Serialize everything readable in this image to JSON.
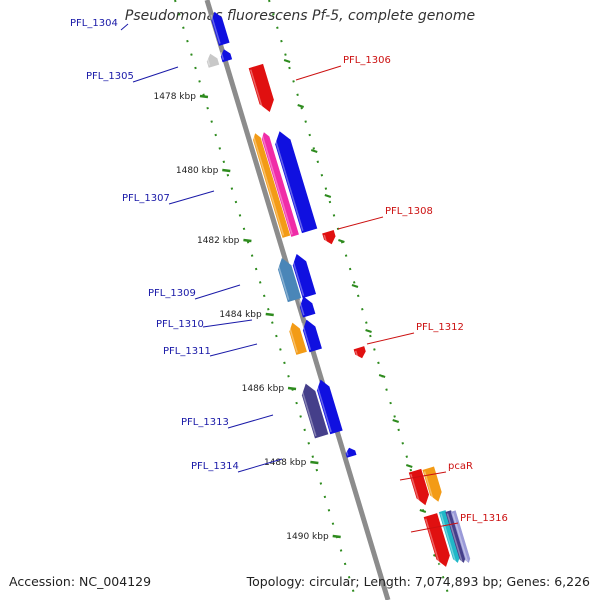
{
  "title": "Pseudomonas fluorescens Pf-5, complete genome",
  "footer": {
    "accession": "Accession: NC_004129",
    "summary": "Topology: circular; Length: 7,074,893 bp; Genes: 6,226"
  },
  "colors": {
    "backbone": "#8c8c8c",
    "tick": "#2e8b1e",
    "label_forward": "#1a1aa8",
    "label_reverse": "#cc1111",
    "scale_text": "#222222"
  },
  "scale_ticks": [
    {
      "label": "1478 kbp"
    },
    {
      "label": "1480 kbp"
    },
    {
      "label": "1482 kbp"
    },
    {
      "label": "1484 kbp"
    },
    {
      "label": "1486 kbp"
    },
    {
      "label": "1488 kbp"
    },
    {
      "label": "1490 kbp"
    }
  ],
  "gene_labels": [
    {
      "text": "PFL_1304",
      "strand": "forward"
    },
    {
      "text": "PFL_1305",
      "strand": "forward"
    },
    {
      "text": "PFL_1306",
      "strand": "reverse"
    },
    {
      "text": "PFL_1307",
      "strand": "forward"
    },
    {
      "text": "PFL_1308",
      "strand": "reverse"
    },
    {
      "text": "PFL_1309",
      "strand": "forward"
    },
    {
      "text": "PFL_1310",
      "strand": "forward"
    },
    {
      "text": "PFL_1311",
      "strand": "forward"
    },
    {
      "text": "PFL_1312",
      "strand": "reverse"
    },
    {
      "text": "PFL_1313",
      "strand": "forward"
    },
    {
      "text": "PFL_1314",
      "strand": "forward"
    },
    {
      "text": "pcaR",
      "strand": "reverse"
    },
    {
      "text": "PFL_1316",
      "strand": "reverse"
    }
  ],
  "features": [
    {
      "name": "PFL_1304",
      "color": "#1010e0",
      "strand": "forward"
    },
    {
      "name": "PFL_1305-gray",
      "color": "#c8c8c8",
      "strand": "forward"
    },
    {
      "name": "PFL_1305",
      "color": "#1010e0",
      "strand": "forward"
    },
    {
      "name": "PFL_1306",
      "color": "#e01010",
      "strand": "reverse"
    },
    {
      "name": "PFL_1307-orange",
      "color": "#f39b16",
      "strand": "forward"
    },
    {
      "name": "PFL_1307-magenta",
      "color": "#f02ca8",
      "strand": "forward"
    },
    {
      "name": "PFL_1307",
      "color": "#1010e0",
      "strand": "forward"
    },
    {
      "name": "PFL_1308",
      "color": "#e01010",
      "strand": "reverse"
    },
    {
      "name": "PFL_1309-steel",
      "color": "#4a86b8",
      "strand": "forward"
    },
    {
      "name": "PFL_1309",
      "color": "#1010e0",
      "strand": "forward"
    },
    {
      "name": "PFL_1310",
      "color": "#1010e0",
      "strand": "forward"
    },
    {
      "name": "PFL_1311-orange",
      "color": "#f39b16",
      "strand": "forward"
    },
    {
      "name": "PFL_1311",
      "color": "#1010e0",
      "strand": "forward"
    },
    {
      "name": "PFL_1312",
      "color": "#e01010",
      "strand": "reverse"
    },
    {
      "name": "PFL_1313-slate",
      "color": "#453f8a",
      "strand": "forward"
    },
    {
      "name": "PFL_1313",
      "color": "#1010e0",
      "strand": "forward"
    },
    {
      "name": "PFL_1314",
      "color": "#1010e0",
      "strand": "forward"
    },
    {
      "name": "pcaR",
      "color": "#e01010",
      "strand": "reverse"
    },
    {
      "name": "pcaR-orange",
      "color": "#f39b16",
      "strand": "reverse"
    },
    {
      "name": "PFL_1316",
      "color": "#e01010",
      "strand": "reverse"
    },
    {
      "name": "PFL_1316-cyan",
      "color": "#20b8c8",
      "strand": "reverse"
    },
    {
      "name": "PFL_1316-slate",
      "color": "#453f8a",
      "strand": "reverse"
    },
    {
      "name": "PFL_1316-lavender",
      "color": "#9a9ad8",
      "strand": "reverse"
    }
  ]
}
